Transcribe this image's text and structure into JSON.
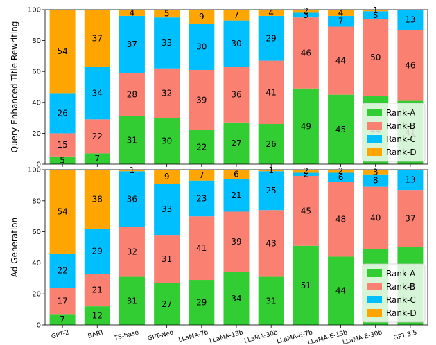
{
  "chart_data": [
    {
      "type": "bar",
      "stacked": true,
      "categories": [
        "GPT-2",
        "BART",
        "T5-base",
        "GPT-Neo",
        "LLaMA-7b",
        "LLaMA-13b",
        "LLaMA-30b",
        "LLaMA-E-7b",
        "LLaMA-E-13b",
        "LLaMA-E-30b",
        "GPT-3.5"
      ],
      "ylabel": "Query-Enhanced Title Rewriting",
      "ylim": [
        0,
        100
      ],
      "yticks": [
        "0",
        "20",
        "40",
        "60",
        "80",
        "100"
      ],
      "grid": false,
      "legend_position": "bottom-right",
      "series": [
        {
          "name": "Rank-A",
          "color": "#32cd32",
          "values": [
            5,
            7,
            31,
            30,
            22,
            27,
            26,
            49,
            45,
            44,
            41
          ]
        },
        {
          "name": "Rank-B",
          "color": "#fa8072",
          "values": [
            15,
            22,
            28,
            32,
            39,
            36,
            41,
            46,
            44,
            50,
            46
          ]
        },
        {
          "name": "Rank-C",
          "color": "#00bfff",
          "values": [
            26,
            34,
            37,
            33,
            30,
            30,
            29,
            3,
            7,
            5,
            13
          ]
        },
        {
          "name": "Rank-D",
          "color": "#ffa500",
          "values": [
            54,
            37,
            4,
            5,
            9,
            7,
            4,
            2,
            4,
            1,
            0
          ]
        }
      ],
      "data_labels": [
        [
          "5",
          "7",
          "31",
          "30",
          "22",
          "27",
          "26",
          "49",
          "45",
          "44",
          "41"
        ],
        [
          "15",
          "22",
          "28",
          "32",
          "39",
          "36",
          "41",
          "46",
          "44",
          "50",
          "46"
        ],
        [
          "26",
          "34",
          "37",
          "33",
          "30",
          "30",
          "29",
          "3",
          "7",
          "5",
          "13"
        ],
        [
          "54",
          "37",
          "4",
          "5",
          "9",
          "7",
          "4",
          "2",
          "4",
          "1",
          ""
        ]
      ]
    },
    {
      "type": "bar",
      "stacked": true,
      "categories": [
        "GPT-2",
        "BART",
        "T5-base",
        "GPT-Neo",
        "LLaMA-7b",
        "LLaMA-13b",
        "LLaMA-30b",
        "LLaMA-E-7b",
        "LLaMA-E-13b",
        "LLaMA-E-30b",
        "GPT-3.5"
      ],
      "ylabel": "Ad Generation",
      "ylim": [
        0,
        100
      ],
      "yticks": [
        "0",
        "20",
        "40",
        "60",
        "80",
        "100"
      ],
      "grid": false,
      "legend_position": "bottom-right",
      "series": [
        {
          "name": "Rank-A",
          "color": "#32cd32",
          "values": [
            7,
            12,
            31,
            27,
            29,
            34,
            31,
            51,
            44,
            49,
            50
          ]
        },
        {
          "name": "Rank-B",
          "color": "#fa8072",
          "values": [
            17,
            21,
            32,
            31,
            41,
            39,
            43,
            45,
            48,
            40,
            37
          ]
        },
        {
          "name": "Rank-C",
          "color": "#00bfff",
          "values": [
            22,
            29,
            36,
            33,
            23,
            21,
            25,
            2,
            6,
            8,
            13
          ]
        },
        {
          "name": "Rank-D",
          "color": "#ffa500",
          "values": [
            54,
            38,
            1,
            9,
            7,
            6,
            1,
            2,
            2,
            3,
            0
          ]
        }
      ],
      "data_labels": [
        [
          "7",
          "12",
          "31",
          "27",
          "29",
          "34",
          "31",
          "51",
          "44",
          "49",
          "50"
        ],
        [
          "17",
          "21",
          "32",
          "31",
          "41",
          "39",
          "43",
          "45",
          "48",
          "40",
          "37"
        ],
        [
          "22",
          "29",
          "36",
          "33",
          "23",
          "21",
          "25",
          "2",
          "6",
          "8",
          "13"
        ],
        [
          "54",
          "38",
          "1",
          "9",
          "7",
          "6",
          "1",
          "2",
          "2",
          "3",
          ""
        ]
      ]
    }
  ]
}
